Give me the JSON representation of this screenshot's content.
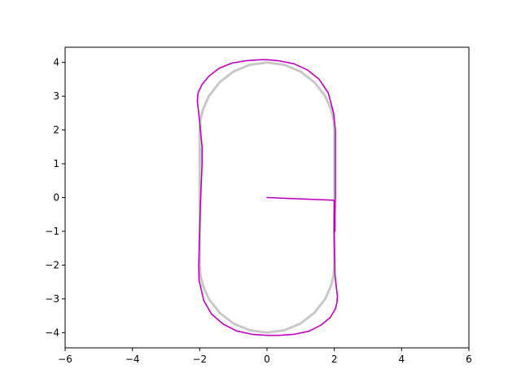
{
  "chart_data": {
    "type": "line",
    "title": "",
    "xlabel": "",
    "ylabel": "",
    "xlim": [
      -6,
      6
    ],
    "ylim": [
      -4.45,
      4.45
    ],
    "x_ticks": [
      -6,
      -4,
      -2,
      0,
      2,
      4,
      6
    ],
    "y_ticks": [
      -4,
      -3,
      -2,
      -1,
      0,
      1,
      2,
      3,
      4
    ],
    "x_tick_labels": [
      "−6",
      "−4",
      "−2",
      "0",
      "2",
      "4",
      "6"
    ],
    "y_tick_labels": [
      "−4",
      "−3",
      "−2",
      "−1",
      "0",
      "1",
      "2",
      "3",
      "4"
    ],
    "grid": false,
    "legend": "none",
    "series": [
      {
        "color": "#c8c8c8",
        "style": "reference track (stadium)",
        "x": [
          2.0,
          2.0,
          1.98,
          1.9,
          1.73,
          1.41,
          1.0,
          0.52,
          0.0,
          -0.52,
          -1.0,
          -1.41,
          -1.73,
          -1.9,
          -1.98,
          -2.0,
          -2.0,
          -2.0,
          -1.98,
          -1.9,
          -1.73,
          -1.41,
          -1.0,
          -0.52,
          0.0,
          0.52,
          1.0,
          1.41,
          1.73,
          1.9,
          1.98,
          2.0,
          2.0
        ],
        "y": [
          0.0,
          2.0,
          2.31,
          2.62,
          3.0,
          3.41,
          3.73,
          3.93,
          4.0,
          3.93,
          3.73,
          3.41,
          3.0,
          2.62,
          2.31,
          2.0,
          0.0,
          -2.0,
          -2.31,
          -2.62,
          -3.0,
          -3.41,
          -3.73,
          -3.93,
          -4.0,
          -3.93,
          -3.73,
          -3.41,
          -3.0,
          -2.62,
          -2.31,
          -2.0,
          0.0
        ]
      },
      {
        "color": "#bf00bf",
        "style": "trajectory",
        "x": [
          0.0,
          2.0,
          1.99,
          2.02,
          2.06,
          2.09,
          2.08,
          2.03,
          1.88,
          1.6,
          1.24,
          0.8,
          0.35,
          0.0,
          -0.45,
          -0.9,
          -1.3,
          -1.65,
          -1.88,
          -2.02,
          -2.03,
          -2.0,
          -1.98,
          -1.93,
          -1.93,
          -1.98,
          -2.03,
          -2.07,
          -2.05,
          -1.93,
          -1.72,
          -1.42,
          -1.05,
          -0.63,
          -0.2,
          0.0,
          0.35,
          0.8,
          1.2,
          1.55,
          1.82,
          1.98,
          2.03,
          2.03,
          2.03,
          2.02,
          2.02
        ],
        "y": [
          0.0,
          -0.08,
          -1.0,
          -2.3,
          -2.65,
          -2.9,
          -3.1,
          -3.3,
          -3.55,
          -3.78,
          -3.96,
          -4.05,
          -4.08,
          -4.08,
          -4.05,
          -3.95,
          -3.75,
          -3.45,
          -3.05,
          -2.45,
          -2.0,
          -1.0,
          -0.2,
          1.0,
          1.5,
          2.0,
          2.5,
          2.85,
          3.1,
          3.35,
          3.6,
          3.83,
          3.98,
          4.05,
          4.08,
          4.08,
          4.05,
          3.96,
          3.78,
          3.5,
          3.1,
          2.5,
          2.0,
          1.0,
          0.0,
          -0.5,
          -1.0
        ]
      }
    ]
  }
}
